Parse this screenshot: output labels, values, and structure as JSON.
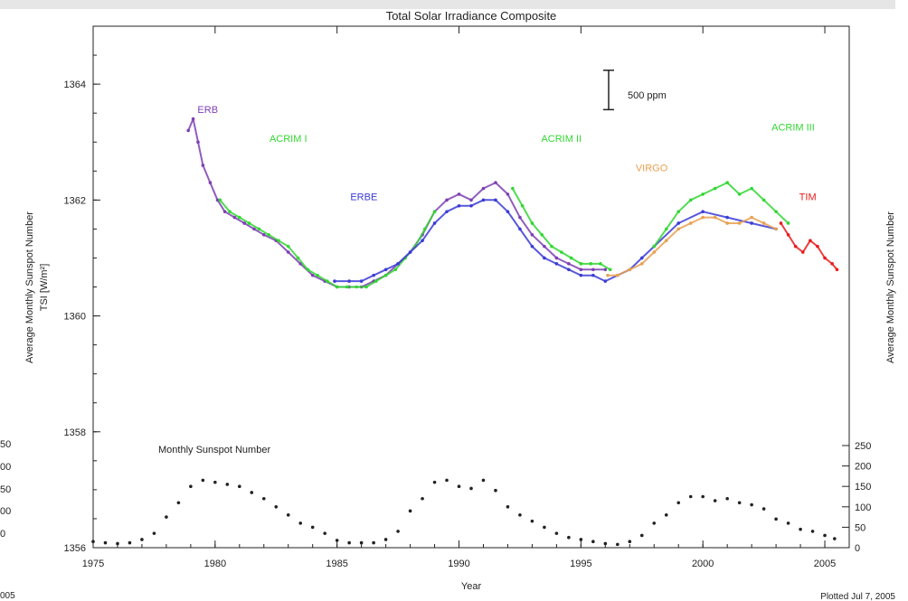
{
  "chart_data": {
    "type": "scatter",
    "title": "Total Solar Irradiance Composite",
    "xlabel": "Year",
    "ylabel_left_outer": "Average Monthly Sunspot Number",
    "ylabel_left_inner": "TSI [W/m²]",
    "ylabel_right": "Average Monthly Sunspot Number",
    "xlim": [
      1975,
      2006
    ],
    "ylim": [
      1356,
      1365
    ],
    "sunspot_ylim": [
      0,
      250
    ],
    "x_ticks": [
      "1975",
      "1980",
      "1985",
      "1990",
      "1995",
      "2000",
      "2005"
    ],
    "y_ticks": [
      {
        "v": 1356,
        "label": "1356"
      },
      {
        "v": 1358,
        "label": "1358"
      },
      {
        "v": 1360,
        "label": "1360"
      },
      {
        "v": 1362,
        "label": "1362"
      },
      {
        "v": 1364,
        "label": "1364"
      }
    ],
    "sunspot_ticks": [
      {
        "v": 0,
        "label": "0"
      },
      {
        "v": 50,
        "label": "50"
      },
      {
        "v": 100,
        "label": "100"
      },
      {
        "v": 150,
        "label": "150"
      },
      {
        "v": 200,
        "label": "200"
      },
      {
        "v": 250,
        "label": "250"
      }
    ],
    "left_fragment_labels": [
      "50",
      "00",
      "50",
      "00",
      "0"
    ],
    "left_fragment_xlabel": "005",
    "scale_bar_label": "500 ppm",
    "scale_bar_center": 1363.9,
    "scale_bar_halfspan": 0.34,
    "sunspot_panel_label": "Monthly Sunspot Number",
    "footer_note": "Plotted Jul  7, 2005",
    "series": [
      {
        "name": "ERB",
        "color": "#7e3fb3",
        "label_x": 1979.7,
        "label_y": 1363.5,
        "points": [
          [
            1978.9,
            1363.2
          ],
          [
            1979.1,
            1363.4
          ],
          [
            1979.3,
            1363.0
          ],
          [
            1979.5,
            1362.6
          ],
          [
            1979.8,
            1362.3
          ],
          [
            1980.1,
            1362.0
          ],
          [
            1980.4,
            1361.8
          ],
          [
            1980.8,
            1361.7
          ],
          [
            1981.2,
            1361.6
          ],
          [
            1981.6,
            1361.5
          ],
          [
            1982.0,
            1361.4
          ],
          [
            1982.5,
            1361.3
          ],
          [
            1983.0,
            1361.1
          ],
          [
            1983.5,
            1360.9
          ],
          [
            1984.0,
            1360.7
          ],
          [
            1984.5,
            1360.6
          ],
          [
            1985.0,
            1360.5
          ],
          [
            1985.5,
            1360.5
          ],
          [
            1986.0,
            1360.5
          ],
          [
            1986.5,
            1360.6
          ],
          [
            1987.0,
            1360.7
          ],
          [
            1987.5,
            1360.9
          ],
          [
            1988.0,
            1361.1
          ],
          [
            1988.5,
            1361.4
          ],
          [
            1989.0,
            1361.8
          ],
          [
            1989.5,
            1362.0
          ],
          [
            1990.0,
            1362.1
          ],
          [
            1990.5,
            1362.0
          ],
          [
            1991.0,
            1362.2
          ],
          [
            1991.5,
            1362.3
          ],
          [
            1992.0,
            1362.1
          ],
          [
            1992.5,
            1361.7
          ],
          [
            1993.0,
            1361.4
          ],
          [
            1993.5,
            1361.2
          ],
          [
            1994.0,
            1361.0
          ],
          [
            1994.5,
            1360.9
          ],
          [
            1995.0,
            1360.8
          ],
          [
            1995.5,
            1360.8
          ],
          [
            1996.0,
            1360.8
          ]
        ]
      },
      {
        "name": "ACRIM I",
        "color": "#33d633",
        "label_x": 1983.0,
        "label_y": 1363.0,
        "points": [
          [
            1980.2,
            1362.0
          ],
          [
            1980.6,
            1361.8
          ],
          [
            1981.0,
            1361.7
          ],
          [
            1981.4,
            1361.6
          ],
          [
            1981.8,
            1361.5
          ],
          [
            1982.2,
            1361.4
          ],
          [
            1982.6,
            1361.3
          ],
          [
            1983.0,
            1361.2
          ],
          [
            1983.4,
            1361.0
          ],
          [
            1983.8,
            1360.8
          ],
          [
            1984.2,
            1360.7
          ],
          [
            1984.6,
            1360.6
          ],
          [
            1985.0,
            1360.5
          ],
          [
            1985.4,
            1360.5
          ],
          [
            1985.8,
            1360.5
          ],
          [
            1986.2,
            1360.5
          ],
          [
            1986.6,
            1360.6
          ],
          [
            1987.0,
            1360.7
          ],
          [
            1987.4,
            1360.8
          ],
          [
            1987.8,
            1361.0
          ],
          [
            1988.2,
            1361.2
          ],
          [
            1988.6,
            1361.5
          ],
          [
            1989.0,
            1361.8
          ]
        ]
      },
      {
        "name": "ERBE",
        "color": "#3b3bd6",
        "label_x": 1986.1,
        "label_y": 1362.0,
        "points": [
          [
            1984.9,
            1360.6
          ],
          [
            1985.5,
            1360.6
          ],
          [
            1986.0,
            1360.6
          ],
          [
            1986.5,
            1360.7
          ],
          [
            1987.0,
            1360.8
          ],
          [
            1987.5,
            1360.9
          ],
          [
            1988.0,
            1361.1
          ],
          [
            1988.5,
            1361.3
          ],
          [
            1989.0,
            1361.6
          ],
          [
            1989.5,
            1361.8
          ],
          [
            1990.0,
            1361.9
          ],
          [
            1990.5,
            1361.9
          ],
          [
            1991.0,
            1362.0
          ],
          [
            1991.5,
            1362.0
          ],
          [
            1992.0,
            1361.8
          ],
          [
            1992.5,
            1361.5
          ],
          [
            1993.0,
            1361.2
          ],
          [
            1993.5,
            1361.0
          ],
          [
            1994.0,
            1360.9
          ],
          [
            1994.5,
            1360.8
          ],
          [
            1995.0,
            1360.7
          ],
          [
            1995.5,
            1360.7
          ],
          [
            1996.0,
            1360.6
          ],
          [
            1996.5,
            1360.7
          ],
          [
            1997.0,
            1360.8
          ],
          [
            1997.5,
            1361.0
          ],
          [
            1998.0,
            1361.2
          ],
          [
            1999.0,
            1361.6
          ],
          [
            2000.0,
            1361.8
          ],
          [
            2001.0,
            1361.7
          ],
          [
            2002.0,
            1361.6
          ],
          [
            2003.0,
            1361.5
          ]
        ]
      },
      {
        "name": "ACRIM II",
        "color": "#33d633",
        "label_x": 1994.2,
        "label_y": 1363.0,
        "points": [
          [
            1992.2,
            1362.2
          ],
          [
            1992.6,
            1361.9
          ],
          [
            1993.0,
            1361.6
          ],
          [
            1993.4,
            1361.4
          ],
          [
            1993.8,
            1361.2
          ],
          [
            1994.2,
            1361.1
          ],
          [
            1994.6,
            1361.0
          ],
          [
            1995.0,
            1360.9
          ],
          [
            1995.4,
            1360.9
          ],
          [
            1995.8,
            1360.9
          ],
          [
            1996.2,
            1360.8
          ]
        ]
      },
      {
        "name": "VIRGO",
        "color": "#e8a050",
        "label_x": 1997.9,
        "label_y": 1362.5,
        "points": [
          [
            1996.1,
            1360.7
          ],
          [
            1996.5,
            1360.7
          ],
          [
            1997.0,
            1360.8
          ],
          [
            1997.5,
            1360.9
          ],
          [
            1998.0,
            1361.1
          ],
          [
            1998.5,
            1361.3
          ],
          [
            1999.0,
            1361.5
          ],
          [
            1999.5,
            1361.6
          ],
          [
            2000.0,
            1361.7
          ],
          [
            2000.5,
            1361.7
          ],
          [
            2001.0,
            1361.6
          ],
          [
            2001.5,
            1361.6
          ],
          [
            2002.0,
            1361.7
          ],
          [
            2002.5,
            1361.6
          ],
          [
            2003.0,
            1361.5
          ]
        ]
      },
      {
        "name": "ACRIM III",
        "color": "#33d633",
        "label_x": 2003.7,
        "label_y": 1363.2,
        "points": [
          [
            1998.0,
            1361.2
          ],
          [
            1998.5,
            1361.5
          ],
          [
            1999.0,
            1361.8
          ],
          [
            1999.5,
            1362.0
          ],
          [
            2000.0,
            1362.1
          ],
          [
            2000.5,
            1362.2
          ],
          [
            2001.0,
            1362.3
          ],
          [
            2001.5,
            1362.1
          ],
          [
            2002.0,
            1362.2
          ],
          [
            2002.5,
            1362.0
          ],
          [
            2003.0,
            1361.8
          ],
          [
            2003.5,
            1361.6
          ]
        ]
      },
      {
        "name": "TIM",
        "color": "#e81c1c",
        "label_x": 2004.3,
        "label_y": 1362.0,
        "points": [
          [
            2003.2,
            1361.6
          ],
          [
            2003.5,
            1361.4
          ],
          [
            2003.8,
            1361.2
          ],
          [
            2004.1,
            1361.1
          ],
          [
            2004.4,
            1361.3
          ],
          [
            2004.7,
            1361.2
          ],
          [
            2005.0,
            1361.0
          ],
          [
            2005.3,
            1360.9
          ],
          [
            2005.5,
            1360.8
          ]
        ]
      }
    ],
    "sunspot": {
      "name": "Monthly Sunspot Number",
      "x": [
        1975.0,
        1975.5,
        1976.0,
        1976.5,
        1977.0,
        1977.5,
        1978.0,
        1978.5,
        1979.0,
        1979.5,
        1980.0,
        1980.5,
        1981.0,
        1981.5,
        1982.0,
        1982.5,
        1983.0,
        1983.5,
        1984.0,
        1984.5,
        1985.0,
        1985.5,
        1986.0,
        1986.5,
        1987.0,
        1987.5,
        1988.0,
        1988.5,
        1989.0,
        1989.5,
        1990.0,
        1990.5,
        1991.0,
        1991.5,
        1992.0,
        1992.5,
        1993.0,
        1993.5,
        1994.0,
        1994.5,
        1995.0,
        1995.5,
        1996.0,
        1996.5,
        1997.0,
        1997.5,
        1998.0,
        1998.5,
        1999.0,
        1999.5,
        2000.0,
        2000.5,
        2001.0,
        2001.5,
        2002.0,
        2002.5,
        2003.0,
        2003.5,
        2004.0,
        2004.5,
        2005.0,
        2005.4
      ],
      "values": [
        15,
        12,
        10,
        12,
        20,
        35,
        75,
        110,
        150,
        165,
        160,
        155,
        150,
        135,
        120,
        100,
        80,
        60,
        50,
        35,
        18,
        12,
        12,
        12,
        20,
        40,
        90,
        120,
        160,
        165,
        150,
        145,
        165,
        140,
        100,
        80,
        65,
        50,
        35,
        25,
        20,
        15,
        10,
        8,
        15,
        30,
        60,
        80,
        110,
        125,
        125,
        115,
        120,
        110,
        105,
        95,
        70,
        60,
        45,
        40,
        30,
        22
      ]
    }
  }
}
